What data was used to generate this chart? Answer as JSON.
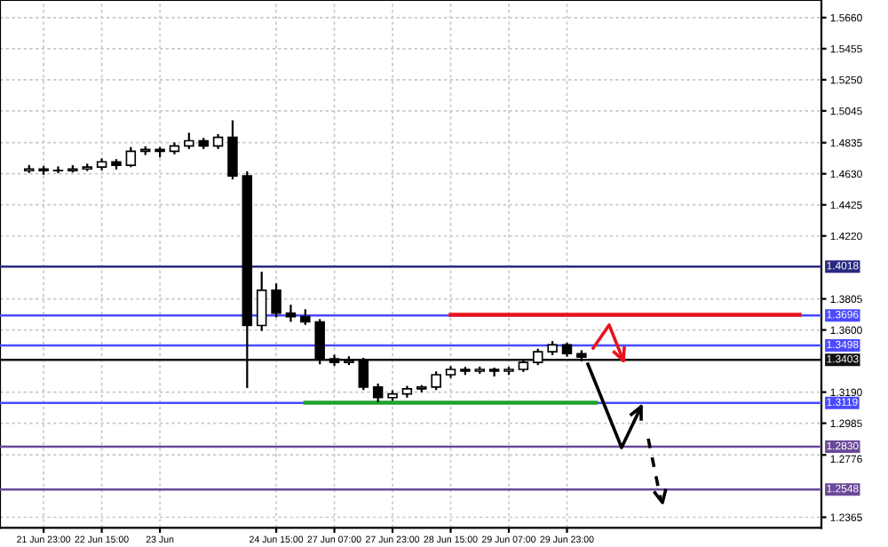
{
  "chart_data": {
    "type": "candlestick",
    "categories": [
      null,
      "21 Jun 23:00",
      null,
      null,
      null,
      "22 Jun 15:00",
      null,
      null,
      null,
      "23 Jun",
      null,
      null,
      null,
      null,
      null,
      null,
      null,
      "24 Jun 15:00",
      null,
      null,
      null,
      "27 Jun 07:00",
      null,
      null,
      null,
      "27 Jun 23:00",
      null,
      null,
      null,
      "28 Jun 15:00",
      null,
      null,
      null,
      "29 Jun 07:00",
      null,
      null,
      null,
      "29 Jun 23:00",
      null,
      null,
      null,
      null,
      null,
      null,
      null,
      null,
      null,
      null,
      null,
      null,
      null,
      null,
      null,
      null,
      null
    ],
    "ohlc": [
      [
        1.465,
        1.4682,
        1.4642,
        1.4662
      ],
      [
        1.4662,
        1.4675,
        1.463,
        1.4651
      ],
      [
        1.4651,
        1.4672,
        1.464,
        1.4651
      ],
      [
        1.4651,
        1.468,
        1.4645,
        1.4662
      ],
      [
        1.4662,
        1.469,
        1.4655,
        1.4674
      ],
      [
        1.4674,
        1.4725,
        1.466,
        1.4709
      ],
      [
        1.4709,
        1.472,
        1.4665,
        1.4686
      ],
      [
        1.4686,
        1.48,
        1.468,
        1.4778
      ],
      [
        1.4778,
        1.4805,
        1.476,
        1.479
      ],
      [
        1.479,
        1.48,
        1.4745,
        1.4778
      ],
      [
        1.4778,
        1.483,
        1.4765,
        1.4813
      ],
      [
        1.4813,
        1.4894,
        1.48,
        1.4848
      ],
      [
        1.4848,
        1.486,
        1.48,
        1.4813
      ],
      [
        1.4813,
        1.4885,
        1.48,
        1.4871
      ],
      [
        1.4871,
        1.4976,
        1.46,
        1.4616
      ],
      [
        1.4616,
        1.464,
        1.3224,
        1.363
      ],
      [
        1.363,
        1.3978,
        1.36,
        1.3862
      ],
      [
        1.3862,
        1.39,
        1.369,
        1.3711
      ],
      [
        1.3711,
        1.376,
        1.366,
        1.3688
      ],
      [
        1.3688,
        1.373,
        1.364,
        1.3653
      ],
      [
        1.3653,
        1.3665,
        1.338,
        1.341
      ],
      [
        1.341,
        1.343,
        1.337,
        1.3386
      ],
      [
        1.3386,
        1.342,
        1.3375,
        1.3398
      ],
      [
        1.3398,
        1.341,
        1.321,
        1.3224
      ],
      [
        1.3224,
        1.324,
        1.313,
        1.3154
      ],
      [
        1.3154,
        1.3195,
        1.314,
        1.3178
      ],
      [
        1.3178,
        1.3225,
        1.316,
        1.3212
      ],
      [
        1.3212,
        1.323,
        1.3195,
        1.3224
      ],
      [
        1.3224,
        1.332,
        1.321,
        1.3305
      ],
      [
        1.3305,
        1.3355,
        1.329,
        1.334
      ],
      [
        1.334,
        1.335,
        1.331,
        1.3328
      ],
      [
        1.3328,
        1.3352,
        1.3318,
        1.334
      ],
      [
        1.334,
        1.3345,
        1.33,
        1.3328
      ],
      [
        1.3328,
        1.335,
        1.331,
        1.334
      ],
      [
        1.334,
        1.3395,
        1.333,
        1.3386
      ],
      [
        1.3386,
        1.347,
        1.3375,
        1.3456
      ],
      [
        1.3456,
        1.352,
        1.344,
        1.3502
      ],
      [
        1.3502,
        1.351,
        1.343,
        1.3444
      ],
      [
        1.3444,
        1.346,
        1.34,
        1.3421
      ],
      null,
      null,
      null,
      null,
      null,
      null,
      null,
      null,
      null,
      null,
      null,
      null,
      null,
      null,
      null,
      null
    ],
    "series": [
      {
        "type": "line",
        "color": "#e8141c",
        "values": [
          null,
          null,
          null,
          null,
          null,
          null,
          null,
          null,
          null,
          null,
          null,
          null,
          null,
          null,
          null,
          null,
          null,
          null,
          null,
          null,
          null,
          null,
          null,
          null,
          null,
          null,
          null,
          null,
          null,
          1.37,
          1.37,
          1.37,
          1.37,
          1.37,
          1.37,
          1.37,
          1.37,
          1.37,
          1.37,
          1.37,
          1.37,
          1.37,
          1.37,
          1.37,
          1.37,
          1.37,
          1.37,
          1.37,
          1.37,
          1.37,
          1.37,
          1.37,
          1.37,
          1.37,
          null
        ]
      },
      {
        "type": "line",
        "color": "#1fa22e",
        "values": [
          null,
          null,
          null,
          null,
          null,
          null,
          null,
          null,
          null,
          null,
          null,
          null,
          null,
          null,
          null,
          null,
          null,
          null,
          null,
          1.312,
          1.312,
          1.312,
          1.312,
          1.312,
          1.312,
          1.312,
          1.312,
          1.312,
          1.312,
          1.312,
          1.312,
          1.312,
          1.312,
          1.312,
          1.312,
          1.312,
          1.312,
          1.312,
          1.312,
          1.312,
          null,
          null,
          null,
          null,
          null,
          null,
          null,
          null,
          null,
          null,
          null,
          null,
          null,
          null,
          null
        ]
      }
    ],
    "ref_lines": [
      {
        "axis": "y",
        "value": 1.4018,
        "label": "1.4018",
        "color": "#2a2a80"
      },
      {
        "axis": "y",
        "value": 1.3696,
        "label": "1.3696",
        "color": "#4a4aff"
      },
      {
        "axis": "y",
        "value": 1.3498,
        "label": "1.3498",
        "color": "#4a4aff"
      },
      {
        "axis": "y",
        "value": 1.3403,
        "label": "1.3403",
        "color": "#111111"
      },
      {
        "axis": "y",
        "value": 1.3119,
        "label": "1.3119",
        "color": "#4a4aff"
      },
      {
        "axis": "y",
        "value": 1.283,
        "label": "1.2830",
        "color": "#6a4a98"
      },
      {
        "axis": "y",
        "value": 1.2548,
        "label": "1.2548",
        "color": "#6a4a98"
      }
    ],
    "ylim": [
      1.2295,
      1.5776
    ],
    "yticks": [
      {
        "value": 1.566,
        "label": "1.5660"
      },
      {
        "value": 1.5455,
        "label": "1.5455"
      },
      {
        "value": 1.525,
        "label": "1.5250"
      },
      {
        "value": 1.5045,
        "label": "1.5045"
      },
      {
        "value": 1.4835,
        "label": "1.4835"
      },
      {
        "value": 1.463,
        "label": "1.4630"
      },
      {
        "value": 1.4425,
        "label": "1.4425"
      },
      {
        "value": 1.422,
        "label": "1.4220"
      },
      {
        "value": 1.3805,
        "label": "1.3805"
      },
      {
        "value": 1.36,
        "label": "1.3600"
      },
      {
        "value": 1.319,
        "label": "1.3190"
      },
      {
        "value": 1.2985,
        "label": "1.2985"
      },
      {
        "value": 1.2776,
        "label": "1.2776"
      },
      {
        "value": 1.2365,
        "label": "1.2365"
      }
    ],
    "grid": true
  }
}
